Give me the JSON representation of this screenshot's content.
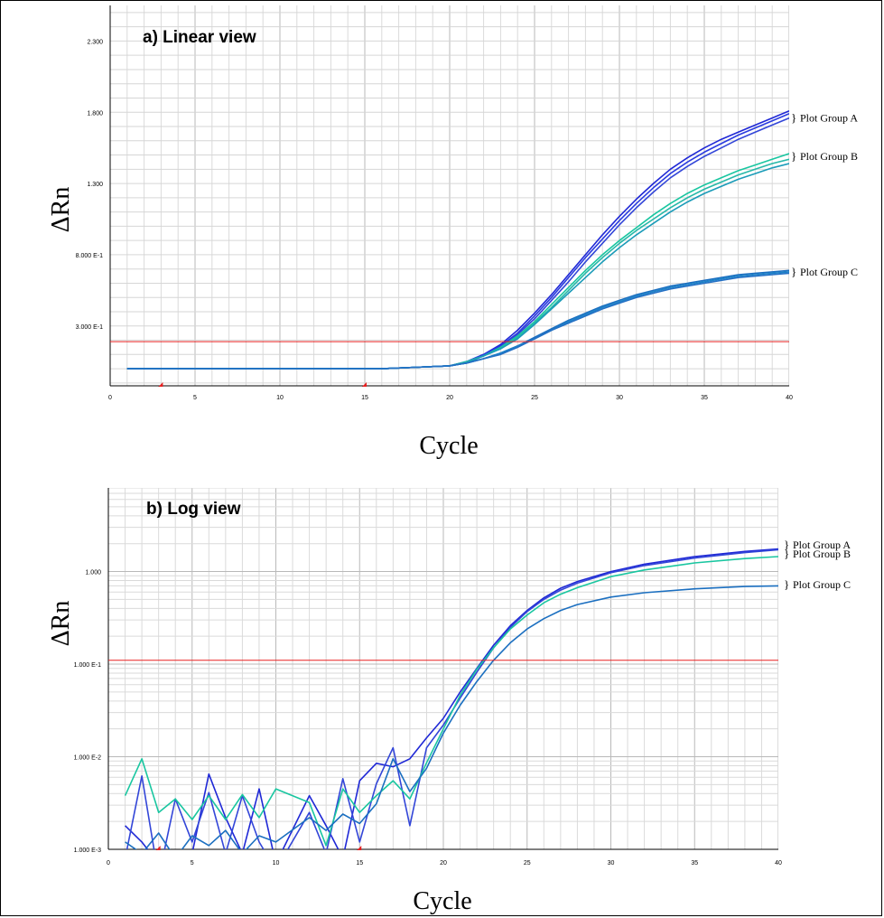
{
  "chart_data": [
    {
      "type": "line",
      "title": "a) Linear view",
      "xlabel": "Cycle",
      "ylabel": "ΔRn",
      "xlim": [
        0,
        40
      ],
      "ylim": [
        -0.12,
        2.55
      ],
      "yscale": "linear",
      "grid": true,
      "x_ticks": [
        0,
        5,
        10,
        15,
        20,
        25,
        30,
        35,
        40
      ],
      "y_ticks": [
        {
          "value": 2.3,
          "label": "2.300"
        },
        {
          "value": 1.8,
          "label": "1.800"
        },
        {
          "value": 1.3,
          "label": "1.300"
        },
        {
          "value": 0.8,
          "label": "8.000 E-1"
        },
        {
          "value": 0.3,
          "label": "3.000 E-1"
        }
      ],
      "threshold": 0.19,
      "baseline_markers_x": [
        3,
        15
      ],
      "threshold_color": "#e82020",
      "group_labels": [
        {
          "text": "Plot Group A",
          "y": 1.76
        },
        {
          "text": "Plot Group B",
          "y": 1.49
        },
        {
          "text": "Plot Group C",
          "y": 0.68
        }
      ],
      "series": [
        {
          "color": "#1f28d6",
          "x": [
            1,
            5,
            10,
            14,
            16,
            18,
            20,
            21,
            22,
            23,
            24,
            25,
            26,
            27,
            28,
            29,
            30,
            31,
            32,
            33,
            34,
            35,
            36,
            37,
            38,
            39,
            40
          ],
          "y": [
            0,
            0,
            0,
            0,
            0,
            0.01,
            0.02,
            0.05,
            0.1,
            0.17,
            0.27,
            0.39,
            0.52,
            0.66,
            0.8,
            0.94,
            1.07,
            1.19,
            1.3,
            1.4,
            1.48,
            1.55,
            1.61,
            1.66,
            1.71,
            1.76,
            1.81
          ]
        },
        {
          "color": "#2a3be0",
          "x": [
            1,
            5,
            10,
            14,
            16,
            18,
            20,
            21,
            22,
            23,
            24,
            25,
            26,
            27,
            28,
            29,
            30,
            31,
            32,
            33,
            34,
            35,
            36,
            37,
            38,
            39,
            40
          ],
          "y": [
            0,
            0,
            0,
            0,
            0,
            0.01,
            0.02,
            0.05,
            0.1,
            0.16,
            0.25,
            0.37,
            0.5,
            0.64,
            0.78,
            0.91,
            1.04,
            1.16,
            1.27,
            1.37,
            1.45,
            1.52,
            1.58,
            1.64,
            1.69,
            1.74,
            1.79
          ]
        },
        {
          "color": "#3346d8",
          "x": [
            1,
            5,
            10,
            14,
            16,
            18,
            20,
            21,
            22,
            23,
            24,
            25,
            26,
            27,
            28,
            29,
            30,
            31,
            32,
            33,
            34,
            35,
            36,
            37,
            38,
            39,
            40
          ],
          "y": [
            0,
            0,
            0,
            0,
            0,
            0.01,
            0.02,
            0.05,
            0.09,
            0.15,
            0.24,
            0.35,
            0.48,
            0.61,
            0.75,
            0.88,
            1.01,
            1.13,
            1.24,
            1.34,
            1.42,
            1.49,
            1.55,
            1.61,
            1.66,
            1.71,
            1.76
          ]
        },
        {
          "color": "#19c6a0",
          "x": [
            1,
            5,
            10,
            14,
            16,
            18,
            20,
            21,
            22,
            23,
            24,
            25,
            26,
            27,
            28,
            29,
            30,
            31,
            32,
            33,
            34,
            35,
            36,
            37,
            38,
            39,
            40
          ],
          "y": [
            0,
            0,
            0,
            0,
            0,
            0.01,
            0.02,
            0.05,
            0.09,
            0.15,
            0.23,
            0.33,
            0.45,
            0.57,
            0.69,
            0.8,
            0.9,
            0.99,
            1.08,
            1.16,
            1.23,
            1.29,
            1.34,
            1.39,
            1.43,
            1.47,
            1.51
          ]
        },
        {
          "color": "#26b8a8",
          "x": [
            1,
            5,
            10,
            14,
            16,
            18,
            20,
            21,
            22,
            23,
            24,
            25,
            26,
            27,
            28,
            29,
            30,
            31,
            32,
            33,
            34,
            35,
            36,
            37,
            38,
            39,
            40
          ],
          "y": [
            0,
            0,
            0,
            0,
            0,
            0.01,
            0.02,
            0.05,
            0.09,
            0.14,
            0.22,
            0.32,
            0.43,
            0.55,
            0.67,
            0.78,
            0.88,
            0.97,
            1.05,
            1.13,
            1.2,
            1.26,
            1.31,
            1.36,
            1.4,
            1.44,
            1.47
          ]
        },
        {
          "color": "#1a9bb8",
          "x": [
            1,
            5,
            10,
            14,
            16,
            18,
            20,
            21,
            22,
            23,
            24,
            25,
            26,
            27,
            28,
            29,
            30,
            31,
            32,
            33,
            34,
            35,
            36,
            37,
            38,
            39,
            40
          ],
          "y": [
            0,
            0,
            0,
            0,
            0,
            0.01,
            0.02,
            0.04,
            0.09,
            0.14,
            0.21,
            0.31,
            0.42,
            0.53,
            0.64,
            0.75,
            0.85,
            0.94,
            1.02,
            1.1,
            1.17,
            1.23,
            1.28,
            1.33,
            1.37,
            1.41,
            1.44
          ]
        },
        {
          "color": "#1b6fc0",
          "x": [
            1,
            5,
            10,
            14,
            16,
            18,
            20,
            21,
            22,
            23,
            24,
            25,
            26,
            27,
            28,
            29,
            30,
            31,
            32,
            33,
            34,
            35,
            36,
            37,
            38,
            39,
            40
          ],
          "y": [
            0,
            0,
            0,
            0,
            0,
            0.01,
            0.02,
            0.04,
            0.07,
            0.11,
            0.16,
            0.22,
            0.28,
            0.34,
            0.39,
            0.44,
            0.48,
            0.52,
            0.55,
            0.58,
            0.6,
            0.62,
            0.64,
            0.66,
            0.67,
            0.68,
            0.69
          ]
        },
        {
          "color": "#1c82c8",
          "x": [
            1,
            5,
            10,
            14,
            16,
            18,
            20,
            21,
            22,
            23,
            24,
            25,
            26,
            27,
            28,
            29,
            30,
            31,
            32,
            33,
            34,
            35,
            36,
            37,
            38,
            39,
            40
          ],
          "y": [
            0,
            0,
            0,
            0,
            0,
            0.01,
            0.02,
            0.04,
            0.07,
            0.11,
            0.16,
            0.21,
            0.27,
            0.33,
            0.38,
            0.43,
            0.47,
            0.51,
            0.54,
            0.57,
            0.59,
            0.61,
            0.63,
            0.65,
            0.66,
            0.67,
            0.68
          ]
        },
        {
          "color": "#2470c4",
          "x": [
            1,
            5,
            10,
            14,
            16,
            18,
            20,
            21,
            22,
            23,
            24,
            25,
            26,
            27,
            28,
            29,
            30,
            31,
            32,
            33,
            34,
            35,
            36,
            37,
            38,
            39,
            40
          ],
          "y": [
            0,
            0,
            0,
            0,
            0,
            0.01,
            0.02,
            0.04,
            0.07,
            0.1,
            0.15,
            0.21,
            0.27,
            0.32,
            0.37,
            0.42,
            0.46,
            0.5,
            0.53,
            0.56,
            0.58,
            0.6,
            0.62,
            0.64,
            0.65,
            0.66,
            0.67
          ]
        }
      ]
    },
    {
      "type": "line",
      "title": "b) Log view",
      "xlabel": "Cycle",
      "ylabel": "ΔRn",
      "xlim": [
        0,
        40
      ],
      "ylim": [
        0.001,
        8
      ],
      "yscale": "log",
      "grid": true,
      "x_ticks": [
        0,
        5,
        10,
        15,
        20,
        25,
        30,
        35,
        40
      ],
      "y_ticks": [
        {
          "value": 1,
          "label": "1.000"
        },
        {
          "value": 0.1,
          "label": "1.000 E-1"
        },
        {
          "value": 0.01,
          "label": "1.000 E-2"
        },
        {
          "value": 0.001,
          "label": "1.000 E-3"
        }
      ],
      "threshold": 0.11,
      "baseline_markers_x": [
        3,
        15
      ],
      "threshold_color": "#e82020",
      "group_labels": [
        {
          "text": "Plot Group A",
          "y": 1.95
        },
        {
          "text": "Plot Group B",
          "y": 1.55
        },
        {
          "text": "Plot Group C",
          "y": 0.72
        }
      ],
      "series": [
        {
          "color": "#1f28d6",
          "x": [
            1,
            2,
            3,
            4,
            5,
            6,
            7,
            8,
            9,
            10,
            12,
            13,
            14,
            15,
            16,
            17,
            18,
            19,
            20,
            21,
            22,
            23,
            24,
            25,
            26,
            27,
            28,
            30,
            32,
            35,
            38,
            40
          ],
          "y": [
            0.0018,
            0.0012,
            0.0007,
            0.0006,
            0.0009,
            0.0065,
            0.0022,
            0.0009,
            0.0045,
            0.0007,
            0.0038,
            0.0018,
            0.0008,
            0.0055,
            0.0085,
            0.0078,
            0.0095,
            0.016,
            0.026,
            0.05,
            0.09,
            0.16,
            0.26,
            0.38,
            0.52,
            0.66,
            0.78,
            1.0,
            1.2,
            1.45,
            1.65,
            1.75
          ]
        },
        {
          "color": "#3346d8",
          "x": [
            1,
            2,
            3,
            4,
            5,
            6,
            7,
            8,
            9,
            10,
            12,
            13,
            14,
            15,
            16,
            17,
            18,
            19,
            20,
            21,
            22,
            23,
            24,
            25,
            26,
            27,
            28,
            30,
            32,
            35,
            38,
            40
          ],
          "y": [
            0.0008,
            0.0062,
            0.0005,
            0.0035,
            0.0012,
            0.0041,
            0.0009,
            0.0038,
            0.0012,
            0.0006,
            0.0025,
            0.0009,
            0.0058,
            0.0012,
            0.0051,
            0.0125,
            0.0018,
            0.0125,
            0.022,
            0.043,
            0.082,
            0.15,
            0.25,
            0.37,
            0.5,
            0.63,
            0.75,
            0.97,
            1.16,
            1.4,
            1.6,
            1.72
          ]
        },
        {
          "color": "#19c6a0",
          "x": [
            1,
            2,
            3,
            4,
            5,
            6,
            7,
            8,
            9,
            10,
            12,
            13,
            14,
            15,
            16,
            17,
            18,
            19,
            20,
            21,
            22,
            23,
            24,
            25,
            26,
            27,
            28,
            30,
            32,
            35,
            38,
            40
          ],
          "y": [
            0.0038,
            0.0095,
            0.0025,
            0.0035,
            0.0021,
            0.0038,
            0.0021,
            0.0039,
            0.0022,
            0.0045,
            0.0032,
            0.0011,
            0.0045,
            0.0025,
            0.0038,
            0.0055,
            0.0035,
            0.0086,
            0.02,
            0.046,
            0.088,
            0.15,
            0.24,
            0.34,
            0.46,
            0.57,
            0.67,
            0.88,
            1.04,
            1.24,
            1.38,
            1.45
          ]
        },
        {
          "color": "#1b6fc0",
          "x": [
            1,
            2,
            3,
            4,
            5,
            6,
            7,
            8,
            9,
            10,
            12,
            13,
            14,
            15,
            16,
            17,
            18,
            19,
            20,
            21,
            22,
            23,
            24,
            25,
            26,
            27,
            28,
            30,
            32,
            35,
            38,
            40
          ],
          "y": [
            0.0012,
            0.0009,
            0.0015,
            0.0008,
            0.0014,
            0.0011,
            0.0016,
            0.0009,
            0.0014,
            0.0012,
            0.0022,
            0.0016,
            0.0024,
            0.0019,
            0.0031,
            0.0095,
            0.0042,
            0.0075,
            0.018,
            0.036,
            0.065,
            0.11,
            0.17,
            0.24,
            0.31,
            0.38,
            0.44,
            0.53,
            0.59,
            0.65,
            0.69,
            0.7
          ]
        }
      ]
    }
  ]
}
